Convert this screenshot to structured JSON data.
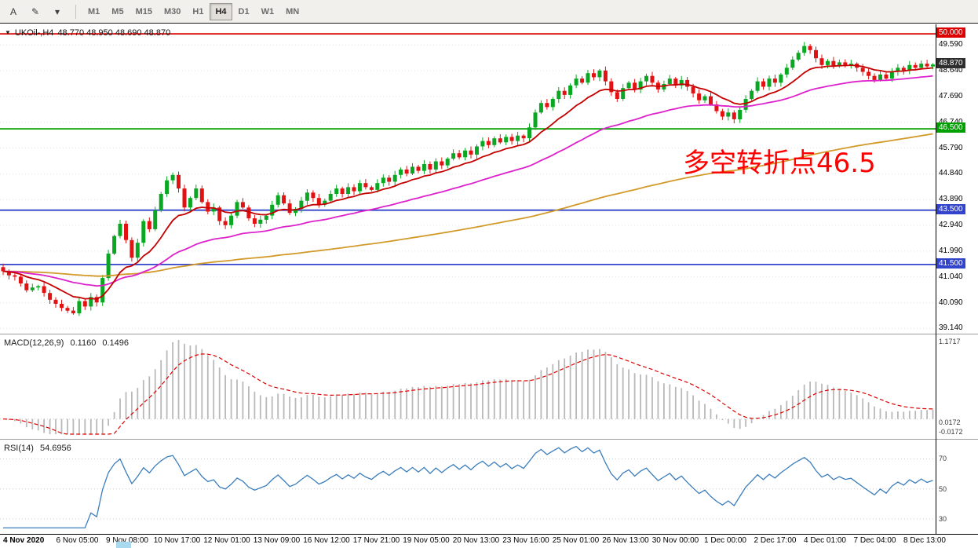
{
  "icons": {
    "dropdown": "▼",
    "cursor": "A",
    "pencil": "✎",
    "chevron": "▾"
  },
  "toolbar": {
    "tool_buttons": [
      {
        "id": "cursor-tool",
        "label": "A"
      },
      {
        "id": "draw-tool",
        "label": "✎"
      },
      {
        "id": "tools-dropdown",
        "label": "▾"
      }
    ],
    "timeframes": [
      {
        "label": "M1",
        "active": false
      },
      {
        "label": "M5",
        "active": false
      },
      {
        "label": "M15",
        "active": false
      },
      {
        "label": "M30",
        "active": false
      },
      {
        "label": "H1",
        "active": false
      },
      {
        "label": "H4",
        "active": true
      },
      {
        "label": "D1",
        "active": false
      },
      {
        "label": "W1",
        "active": false
      },
      {
        "label": "MN",
        "active": false
      }
    ]
  },
  "chart": {
    "symbol": "UKOil-,H4",
    "ohlc_text": "48.770 48.950 48.690 48.870",
    "current_price": "48.870",
    "current_price_badge_color": "#2e2e2e",
    "annotation": {
      "text": "多空转折点46.5",
      "color": "#ff0000"
    },
    "levels": [
      {
        "price": 50.0,
        "label": "50.000",
        "color": "#dd0000"
      },
      {
        "price": 46.5,
        "label": "46.500",
        "color": "#00a000"
      },
      {
        "price": 43.5,
        "label": "43.500",
        "color": "#3344cc"
      },
      {
        "price": 41.5,
        "label": "41.500",
        "color": "#3344cc"
      }
    ],
    "axis_labels": [
      "49.590",
      "48.640",
      "47.690",
      "46.740",
      "45.790",
      "44.840",
      "43.890",
      "42.940",
      "41.990",
      "41.040",
      "40.090",
      "39.140"
    ],
    "colors": {
      "up": "#0aa722",
      "down": "#e31212",
      "ma_fast": "#c40000",
      "ma_mid": "#dd22cc",
      "ma_slow": "#d29a2a",
      "grid": "#e2e2e2"
    }
  },
  "indicators": {
    "macd": {
      "label": "MACD(12,26,9)",
      "value_main": "0.1160",
      "value_signal": "0.1496",
      "axis_labels": [
        "1.1717",
        "0.0172",
        "-0.0172"
      ],
      "histogram_color": "#b9b9b9",
      "signal_color": "#dd0000"
    },
    "rsi": {
      "label": "RSI(14)",
      "value": "54.6956",
      "levels": [
        70,
        50,
        30
      ],
      "line_color": "#3b7dbb"
    }
  },
  "chart_data": {
    "type": "candlestick",
    "symbol": "UKOil-",
    "timeframe": "H4",
    "title": "UKOil-,H4",
    "last_ohlc": {
      "open": 48.77,
      "high": 48.95,
      "low": 48.69,
      "close": 48.87
    },
    "y_range": [
      38.95,
      50.35
    ],
    "horizontal_lines": [
      50.0,
      46.5,
      43.5,
      41.5
    ],
    "x_labels": [
      "4 Nov 2020",
      "6 Nov 05:00",
      "9 Nov 08:00",
      "10 Nov 17:00",
      "12 Nov 01:00",
      "13 Nov 09:00",
      "16 Nov 12:00",
      "17 Nov 21:00",
      "19 Nov 05:00",
      "20 Nov 13:00",
      "23 Nov 16:00",
      "25 Nov 01:00",
      "26 Nov 13:00",
      "30 Nov 00:00",
      "1 Dec 00:00",
      "2 Dec 17:00",
      "4 Dec 01:00",
      "7 Dec 04:00",
      "8 Dec 13:00"
    ],
    "closes": [
      41.25,
      41.1,
      41.05,
      40.8,
      40.55,
      40.65,
      40.7,
      40.45,
      40.2,
      40.05,
      39.9,
      39.8,
      39.7,
      40.15,
      39.95,
      40.3,
      40.1,
      41.0,
      41.9,
      42.55,
      43.0,
      42.4,
      41.75,
      42.3,
      43.1,
      42.8,
      43.5,
      44.1,
      44.6,
      44.8,
      44.3,
      43.6,
      43.95,
      44.3,
      43.8,
      43.45,
      43.6,
      43.1,
      42.95,
      43.3,
      43.8,
      43.6,
      43.2,
      43.0,
      43.15,
      43.3,
      43.7,
      44.05,
      43.75,
      43.4,
      43.55,
      43.85,
      44.15,
      43.95,
      43.7,
      43.85,
      44.1,
      44.3,
      44.1,
      44.35,
      44.2,
      44.5,
      44.35,
      44.25,
      44.5,
      44.7,
      44.55,
      44.8,
      45.0,
      44.85,
      45.1,
      44.95,
      45.2,
      45.0,
      45.3,
      45.15,
      45.4,
      45.6,
      45.45,
      45.7,
      45.55,
      45.85,
      46.05,
      45.9,
      46.15,
      46.0,
      46.2,
      46.05,
      46.25,
      46.15,
      46.55,
      47.1,
      47.45,
      47.3,
      47.6,
      47.9,
      47.75,
      48.1,
      48.35,
      48.2,
      48.55,
      48.4,
      48.65,
      48.25,
      47.85,
      47.6,
      48.0,
      48.2,
      47.95,
      48.25,
      48.45,
      48.2,
      47.95,
      48.15,
      48.35,
      48.1,
      48.3,
      48.05,
      47.8,
      47.55,
      47.7,
      47.4,
      47.15,
      46.95,
      47.1,
      46.85,
      47.2,
      47.6,
      47.9,
      48.25,
      48.05,
      48.35,
      48.2,
      48.5,
      48.75,
      49.05,
      49.3,
      49.55,
      49.4,
      49.1,
      48.85,
      49.0,
      48.8,
      48.95,
      48.85,
      48.9,
      48.75,
      48.6,
      48.45,
      48.3,
      48.5,
      48.35,
      48.6,
      48.75,
      48.65,
      48.85,
      48.75,
      48.9,
      48.8,
      48.87
    ]
  }
}
